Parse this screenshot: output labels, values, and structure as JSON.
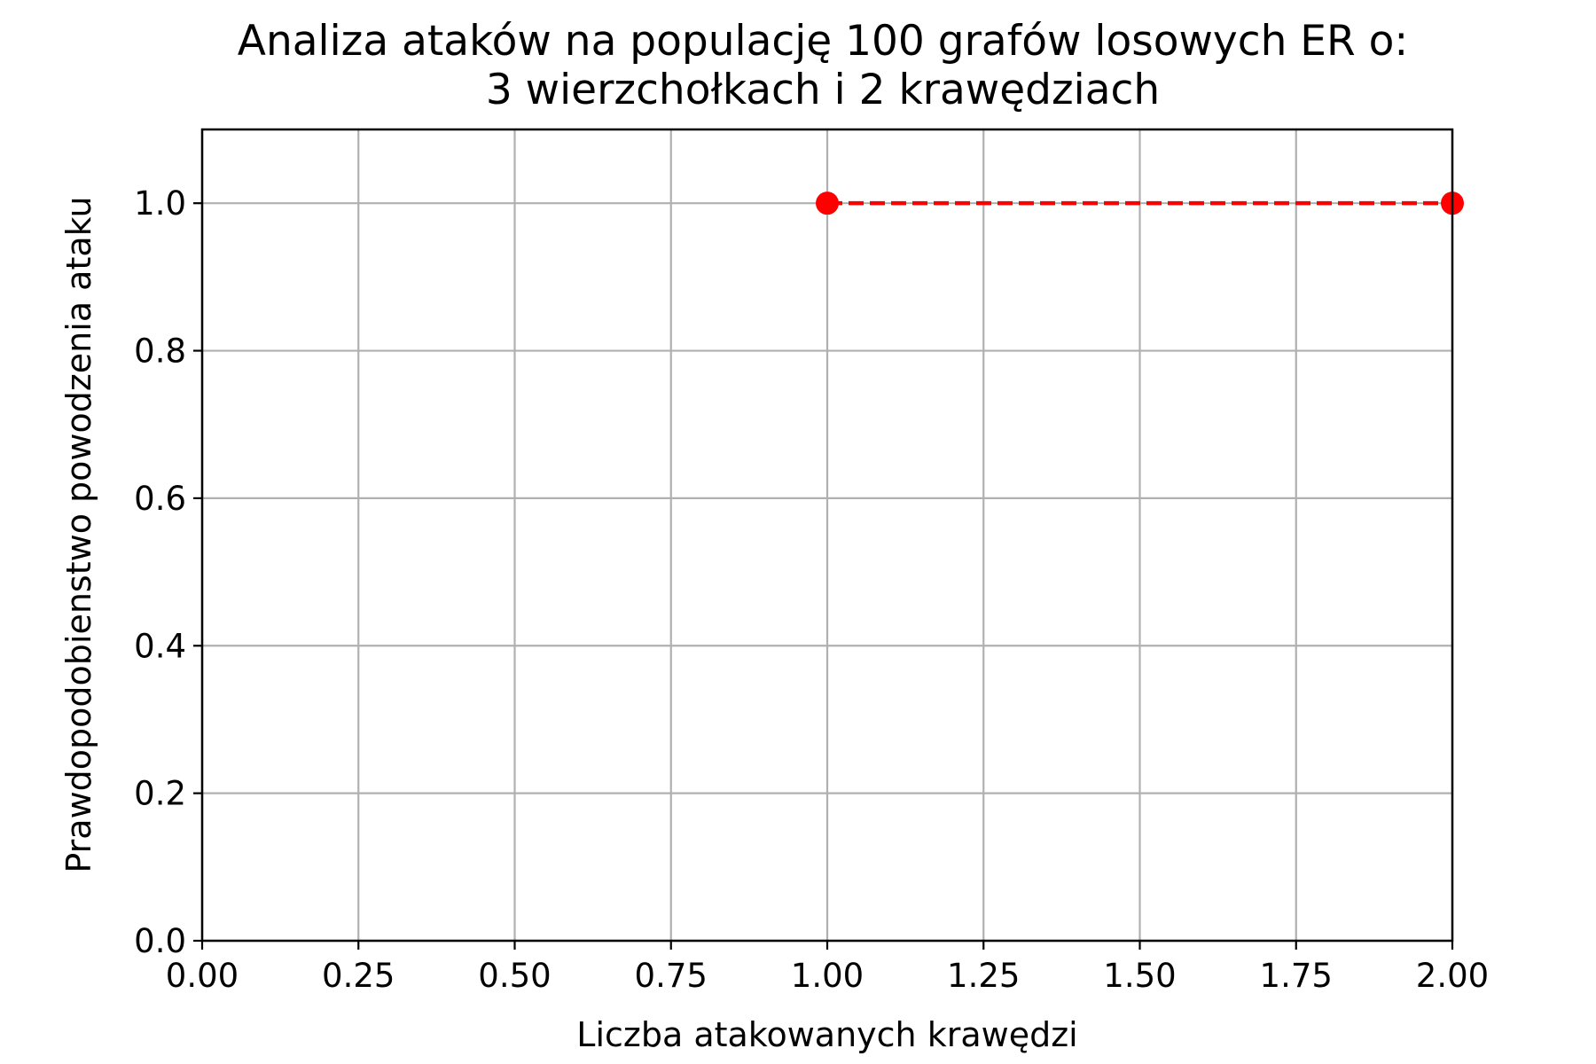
{
  "chart_data": {
    "type": "line",
    "title": [
      "Analiza ataków na populację 100 grafów losowych ER o:",
      "3 wierzchołkach i 2 krawędziach"
    ],
    "xlabel": "Liczba atakowanych krawędzi",
    "ylabel": "Prawdopodobienstwo powodzenia ataku",
    "xlim": [
      0,
      2
    ],
    "ylim": [
      0,
      1.1
    ],
    "xticks": [
      0,
      0.25,
      0.5,
      0.75,
      1.0,
      1.25,
      1.5,
      1.75,
      2.0
    ],
    "xtick_labels": [
      "0.00",
      "0.25",
      "0.50",
      "0.75",
      "1.00",
      "1.25",
      "1.50",
      "1.75",
      "2.00"
    ],
    "yticks": [
      0,
      0.2,
      0.4,
      0.6,
      0.8,
      1.0
    ],
    "ytick_labels": [
      "0.0",
      "0.2",
      "0.4",
      "0.6",
      "0.8",
      "1.0"
    ],
    "grid": true,
    "series": [
      {
        "x": [
          1,
          2
        ],
        "y": [
          1.0,
          1.0
        ],
        "color": "#ff0000",
        "line_style": "dashed",
        "marker": "circle"
      }
    ]
  }
}
